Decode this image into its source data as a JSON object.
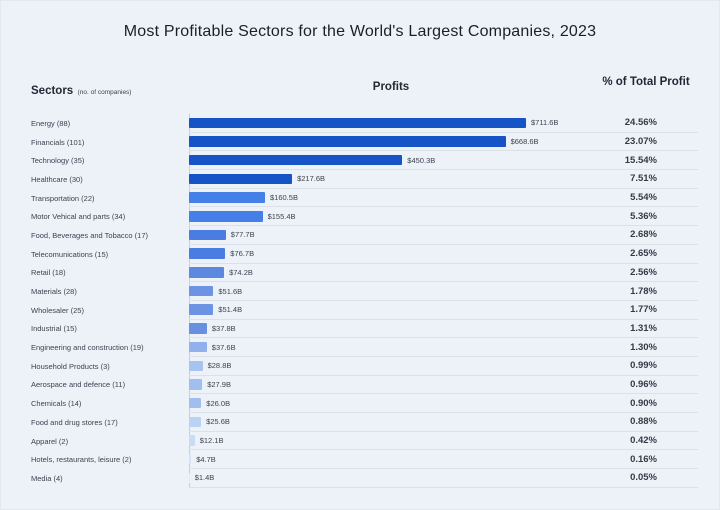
{
  "headers": {
    "sectors": "Sectors",
    "sectors_note": "(no. of companies)",
    "profits": "Profits",
    "percent": "% of Total Profit"
  },
  "chart_data": {
    "type": "bar",
    "orientation": "horizontal",
    "title": "Most Profitable Sectors for the World's Largest Companies, 2023",
    "xlabel": "Profits",
    "ylabel": "Sectors (no. of companies)",
    "value_unit": "USD billions",
    "grid": "row separators only",
    "legend": "none",
    "max_value": 711.6,
    "xlim": [
      0,
      711.6
    ],
    "categories": [
      "Energy (88)",
      "Financials (101)",
      "Technology (35)",
      "Healthcare (30)",
      "Transportation (22)",
      "Motor Vehical and parts (34)",
      "Food, Beverages and Tobacco (17)",
      "Telecomunications (15)",
      "Retail (18)",
      "Materials (28)",
      "Wholesaler (25)",
      "Industrial (15)",
      "Engineering and construction (19)",
      "Household Products (3)",
      "Aerospace and defence (11)",
      "Chemicals (14)",
      "Food and drug stores (17)",
      "Apparel (2)",
      "Hotels, restaurants, leisure (2)",
      "Media (4)"
    ],
    "values": [
      711.6,
      668.6,
      450.3,
      217.6,
      160.5,
      155.4,
      77.7,
      76.7,
      74.2,
      51.6,
      51.4,
      37.8,
      37.6,
      28.8,
      27.9,
      26.0,
      25.6,
      12.1,
      4.7,
      1.4
    ],
    "value_labels": [
      "$711.6B",
      "$668.6B",
      "$450.3B",
      "$217.6B",
      "$160.5B",
      "$155.4B",
      "$77.7B",
      "$76.7B",
      "$74.2B",
      "$51.6B",
      "$51.4B",
      "$37.8B",
      "$37.6B",
      "$28.8B",
      "$27.9B",
      "$26.0B",
      "$25.6B",
      "$12.1B",
      "$4.7B",
      "$1.4B"
    ],
    "percents": [
      "24.56%",
      "23.07%",
      "15.54%",
      "7.51%",
      "5.54%",
      "5.36%",
      "2.68%",
      "2.65%",
      "2.56%",
      "1.78%",
      "1.77%",
      "1.31%",
      "1.30%",
      "0.99%",
      "0.96%",
      "0.90%",
      "0.88%",
      "0.42%",
      "0.16%",
      "0.05%"
    ],
    "bar_colors": [
      "#1553c6",
      "#1553c6",
      "#1553c6",
      "#1553c6",
      "#4480e8",
      "#4480e8",
      "#4a7ce2",
      "#4a7ce2",
      "#5c88e0",
      "#6d94e2",
      "#6d94e2",
      "#6890de",
      "#92b1ec",
      "#a7c3f0",
      "#a1bfee",
      "#a1bfee",
      "#bad3f3",
      "#c9dcf6",
      "#d4e3f8",
      "#e0ebfa"
    ]
  }
}
